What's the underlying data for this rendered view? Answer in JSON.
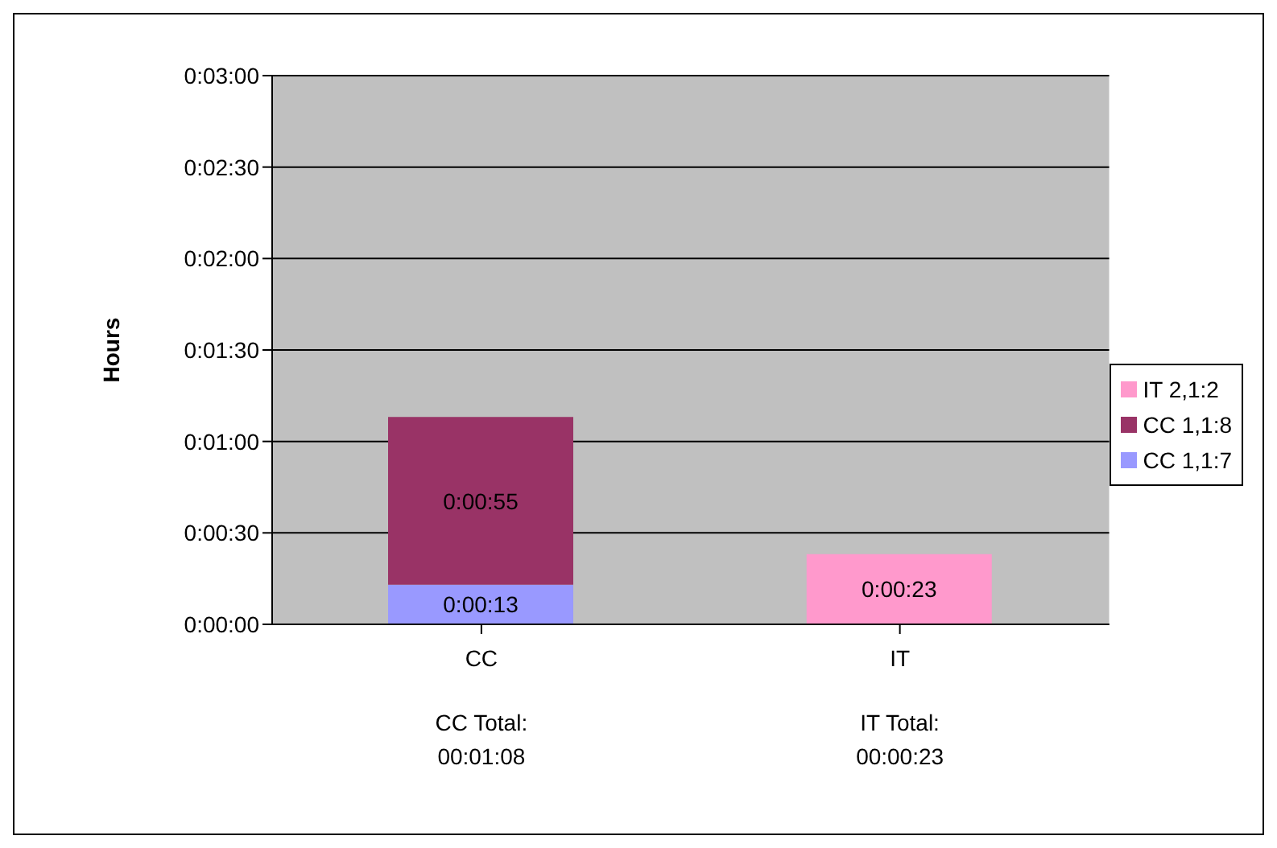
{
  "chart_data": {
    "type": "bar",
    "stacked": true,
    "ylabel": "Hours",
    "categories": [
      "CC",
      "IT"
    ],
    "series": [
      {
        "name": "CC 1,1:7",
        "color": "#9999ff",
        "values": [
          13,
          null
        ],
        "value_labels": [
          "0:00:13",
          null
        ]
      },
      {
        "name": "CC 1,1:8",
        "color": "#993366",
        "values": [
          55,
          null
        ],
        "value_labels": [
          "0:00:55",
          null
        ]
      },
      {
        "name": "IT 2,1:2",
        "color": "#ff99cc",
        "values": [
          null,
          23
        ],
        "value_labels": [
          null,
          "0:00:23"
        ]
      }
    ],
    "annotations": [
      "CC Total:\n00:01:08",
      "IT Total:\n00:00:23"
    ],
    "ylim": [
      0,
      180
    ],
    "yticks": [
      {
        "value": 0,
        "label": "0:00:00"
      },
      {
        "value": 30,
        "label": "0:00:30"
      },
      {
        "value": 60,
        "label": "0:01:00"
      },
      {
        "value": 90,
        "label": "0:01:30"
      },
      {
        "value": 120,
        "label": "0:02:00"
      },
      {
        "value": 150,
        "label": "0:02:30"
      },
      {
        "value": 180,
        "label": "0:03:00"
      }
    ],
    "grid": "y",
    "legend": "right"
  }
}
